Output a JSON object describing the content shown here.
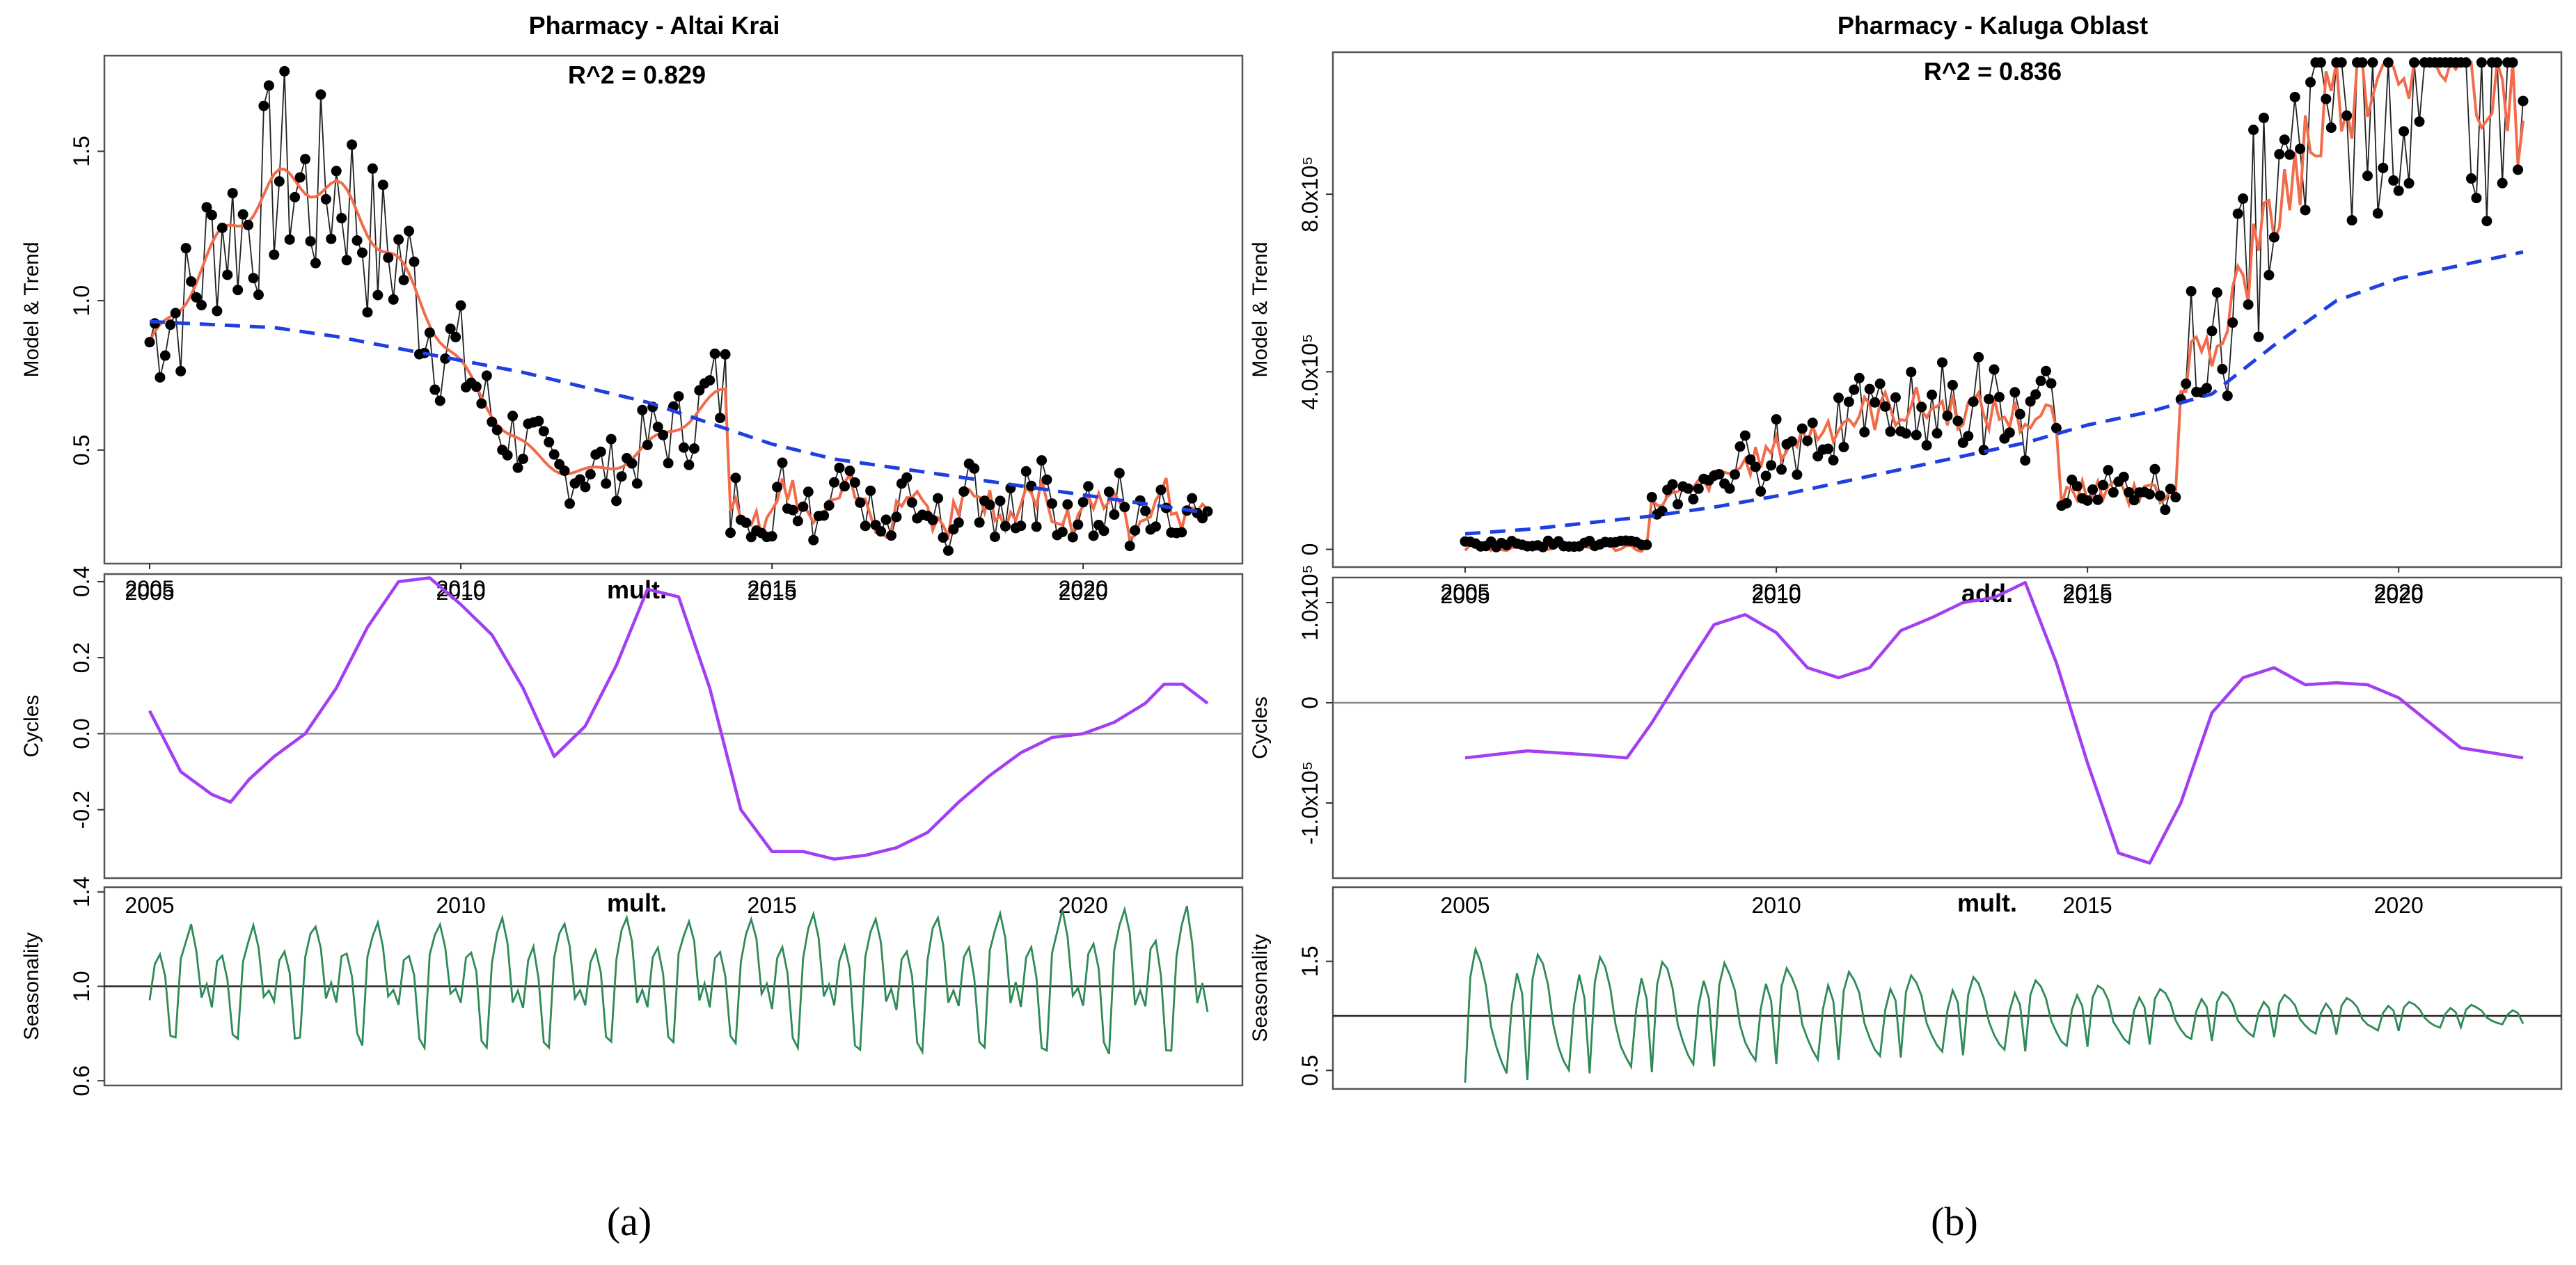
{
  "captions": {
    "a": "(a)",
    "b": "(b)"
  },
  "chart_data": [
    {
      "type": "line",
      "id": "a",
      "title": "Pharmacy - Altai Krai",
      "x_range": [
        2005,
        2022
      ],
      "x_ticks": [
        2005,
        2010,
        2015,
        2020
      ],
      "panels": [
        {
          "name": "model",
          "ylabel": "Model & Trend",
          "annotation": "R^2 = 0.829",
          "ylim": [
            0.12,
            1.82
          ],
          "y_ticks": [
            {
              "v": 0.5,
              "label": "0.5"
            },
            {
              "v": 1.0,
              "label": "1.0"
            },
            {
              "v": 1.5,
              "label": "1.5"
            }
          ],
          "series": [
            {
              "name": "Observed",
              "kind": "points+line",
              "color": "#000000"
            },
            {
              "name": "Model",
              "kind": "line",
              "color": "#f26b4a"
            },
            {
              "name": "Trend",
              "kind": "dashed",
              "color": "#1f3fe0",
              "x": [
                2005,
                2006,
                2007,
                2008,
                2009,
                2010,
                2011,
                2012,
                2013,
                2014,
                2015,
                2016,
                2017,
                2018,
                2019,
                2020,
                2021,
                2022
              ],
              "values": [
                0.93,
                0.92,
                0.91,
                0.88,
                0.84,
                0.8,
                0.76,
                0.71,
                0.66,
                0.59,
                0.52,
                0.47,
                0.44,
                0.41,
                0.38,
                0.35,
                0.32,
                0.29
              ]
            }
          ]
        },
        {
          "name": "cycles",
          "ylabel": "Cycles",
          "annotation": "mult.",
          "ylim": [
            -0.38,
            0.42
          ],
          "refline": 0,
          "y_ticks": [
            {
              "v": -0.2,
              "label": "-0.2"
            },
            {
              "v": 0.0,
              "label": "0.0"
            },
            {
              "v": 0.2,
              "label": "0.2"
            },
            {
              "v": 0.4,
              "label": "0.4"
            }
          ],
          "series": [
            {
              "name": "Cycles",
              "kind": "line",
              "color": "#a33ef2",
              "x": [
                2005,
                2005.5,
                2006,
                2006.3,
                2006.6,
                2007,
                2007.5,
                2008,
                2008.5,
                2009,
                2009.5,
                2010,
                2010.5,
                2011,
                2011.5,
                2012,
                2012.5,
                2013,
                2013.5,
                2014,
                2014.5,
                2015,
                2015.5,
                2016,
                2016.5,
                2017,
                2017.5,
                2018,
                2018.5,
                2019,
                2019.5,
                2020,
                2020.5,
                2021,
                2021.3,
                2021.6,
                2022
              ],
              "values": [
                0.06,
                -0.1,
                -0.16,
                -0.18,
                -0.12,
                -0.06,
                0.0,
                0.12,
                0.28,
                0.4,
                0.41,
                0.34,
                0.26,
                0.12,
                -0.06,
                0.02,
                0.18,
                0.38,
                0.36,
                0.12,
                -0.2,
                -0.31,
                -0.31,
                -0.33,
                -0.32,
                -0.3,
                -0.26,
                -0.18,
                -0.11,
                -0.05,
                -0.01,
                0.0,
                0.03,
                0.08,
                0.13,
                0.13,
                0.08
              ]
            }
          ]
        },
        {
          "name": "seasonality",
          "ylabel": "Seasonality",
          "annotation": "mult.",
          "ylim": [
            0.58,
            1.42
          ],
          "refline": 1.0,
          "y_ticks": [
            {
              "v": 0.6,
              "label": "0.6"
            },
            {
              "v": 1.0,
              "label": "1.0"
            },
            {
              "v": 1.4,
              "label": "1.4"
            }
          ],
          "series": [
            {
              "name": "Seasonality",
              "kind": "line",
              "color": "#2e8b57",
              "monthly_pattern": [
                0.92,
                1.12,
                1.15,
                1.05,
                0.78,
                0.75,
                1.12,
                1.22,
                1.28,
                1.18,
                0.95,
                1.0
              ],
              "amplitude_start": 0.9,
              "amplitude_end": 1.15
            }
          ]
        }
      ]
    },
    {
      "type": "line",
      "id": "b",
      "title": "Pharmacy - Kaluga Oblast",
      "x_range": [
        2005,
        2022
      ],
      "x_ticks": [
        2005,
        2010,
        2015,
        2020
      ],
      "panels": [
        {
          "name": "model",
          "ylabel": "Model & Trend",
          "annotation": "R^2 = 0.836",
          "ylim": [
            -40000,
            1120000
          ],
          "y_ticks": [
            {
              "v": 0,
              "label": "0"
            },
            {
              "v": 400000,
              "label": "4.0x10⁵"
            },
            {
              "v": 800000,
              "label": "8.0x10⁵"
            }
          ],
          "series": [
            {
              "name": "Observed",
              "kind": "points+line",
              "color": "#000000"
            },
            {
              "name": "Model",
              "kind": "line",
              "color": "#f26b4a"
            },
            {
              "name": "Trend",
              "kind": "dashed",
              "color": "#1f3fe0",
              "x": [
                2005,
                2006,
                2007,
                2008,
                2009,
                2010,
                2011,
                2012,
                2013,
                2014,
                2015,
                2016,
                2017,
                2018,
                2019,
                2020,
                2021,
                2022
              ],
              "values": [
                35000,
                45000,
                60000,
                75000,
                95000,
                120000,
                150000,
                180000,
                210000,
                240000,
                280000,
                310000,
                350000,
                460000,
                560000,
                610000,
                640000,
                670000
              ]
            }
          ]
        },
        {
          "name": "cycles",
          "ylabel": "Cycles",
          "annotation": "add.",
          "ylim": [
            -175000,
            125000
          ],
          "refline": 0,
          "y_ticks": [
            {
              "v": -100000,
              "label": "-1.0x10⁵"
            },
            {
              "v": 0,
              "label": "0"
            },
            {
              "v": 100000,
              "label": "1.0x10⁵"
            }
          ],
          "series": [
            {
              "name": "Cycles",
              "kind": "line",
              "color": "#a33ef2",
              "x": [
                2005,
                2006,
                2007,
                2007.6,
                2008,
                2008.5,
                2009,
                2009.5,
                2010,
                2010.5,
                2011,
                2011.5,
                2012,
                2012.5,
                2013,
                2013.5,
                2014,
                2014.5,
                2015,
                2015.5,
                2016,
                2016.5,
                2017,
                2017.5,
                2018,
                2018.5,
                2019,
                2019.5,
                2020,
                2020.5,
                2021,
                2021.5,
                2022
              ],
              "values": [
                -55000,
                -48000,
                -52000,
                -55000,
                -20000,
                30000,
                78000,
                88000,
                70000,
                35000,
                25000,
                35000,
                72000,
                85000,
                100000,
                105000,
                120000,
                40000,
                -60000,
                -150000,
                -160000,
                -100000,
                -10000,
                25000,
                35000,
                18000,
                20000,
                18000,
                5000,
                -20000,
                -45000,
                -50000,
                -55000
              ]
            }
          ]
        },
        {
          "name": "seasonality",
          "ylabel": "Seasonality",
          "annotation": "mult.",
          "ylim": [
            0.33,
            2.18
          ],
          "refline": 1.0,
          "y_ticks": [
            {
              "v": 0.5,
              "label": "0.5"
            },
            {
              "v": 1.5,
              "label": "1.5"
            }
          ],
          "series": [
            {
              "name": "Seasonality",
              "kind": "line",
              "color": "#2e8b57",
              "monthly_pattern": [
                0.4,
                1.35,
                1.6,
                1.5,
                1.3,
                0.9,
                0.7,
                0.55,
                0.45,
                1.1,
                1.4,
                1.2
              ],
              "amplitude_start": 1.0,
              "amplitude_end": 0.12
            }
          ]
        }
      ]
    }
  ]
}
